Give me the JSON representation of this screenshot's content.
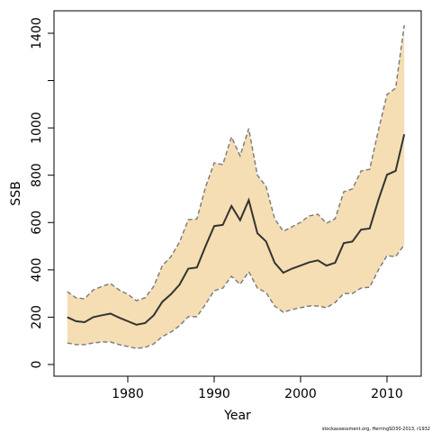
{
  "chart_data": {
    "type": "line_band",
    "x_label": "Year",
    "y_label": "SSB",
    "footnote": "stockassessment.org, HerringSD30-2013, r1932",
    "x": [
      1973,
      1974,
      1975,
      1976,
      1977,
      1978,
      1979,
      1980,
      1981,
      1982,
      1983,
      1984,
      1985,
      1986,
      1987,
      1988,
      1989,
      1990,
      1991,
      1992,
      1993,
      1994,
      1995,
      1996,
      1997,
      1998,
      1999,
      2000,
      2001,
      2002,
      2003,
      2004,
      2005,
      2006,
      2007,
      2008,
      2009,
      2010,
      2011,
      2012
    ],
    "values": [
      200,
      183,
      179,
      200,
      208,
      215,
      198,
      183,
      168,
      175,
      208,
      265,
      297,
      338,
      405,
      410,
      500,
      585,
      590,
      670,
      610,
      695,
      555,
      520,
      430,
      388,
      405,
      418,
      432,
      440,
      418,
      430,
      513,
      520,
      570,
      575,
      695,
      802,
      818,
      973
    ],
    "upper": [
      308,
      282,
      278,
      315,
      330,
      342,
      315,
      297,
      270,
      282,
      330,
      418,
      456,
      518,
      612,
      615,
      750,
      852,
      845,
      962,
      882,
      997,
      800,
      753,
      616,
      563,
      582,
      601,
      628,
      635,
      597,
      616,
      730,
      742,
      818,
      825,
      989,
      1141,
      1168,
      1434
    ],
    "lower": [
      91,
      84,
      84,
      91,
      95,
      95,
      84,
      76,
      68,
      72,
      87,
      118,
      137,
      164,
      202,
      202,
      255,
      312,
      323,
      373,
      339,
      392,
      323,
      304,
      247,
      221,
      232,
      240,
      247,
      247,
      240,
      262,
      300,
      300,
      323,
      327,
      399,
      460,
      456,
      506
    ],
    "color": "#333333",
    "band_color": "#f5deb3",
    "band_edge_color": "#7f7f7f",
    "xlim": [
      1971.46,
      2013.96
    ],
    "xticks": [
      1980,
      1990,
      2000,
      2010
    ],
    "ylim": [
      -49.5,
      1495
    ],
    "yticks": [
      0,
      200,
      400,
      600,
      800,
      1000,
      1400
    ],
    "y_unlabeled_ticks": [
      1200
    ]
  }
}
